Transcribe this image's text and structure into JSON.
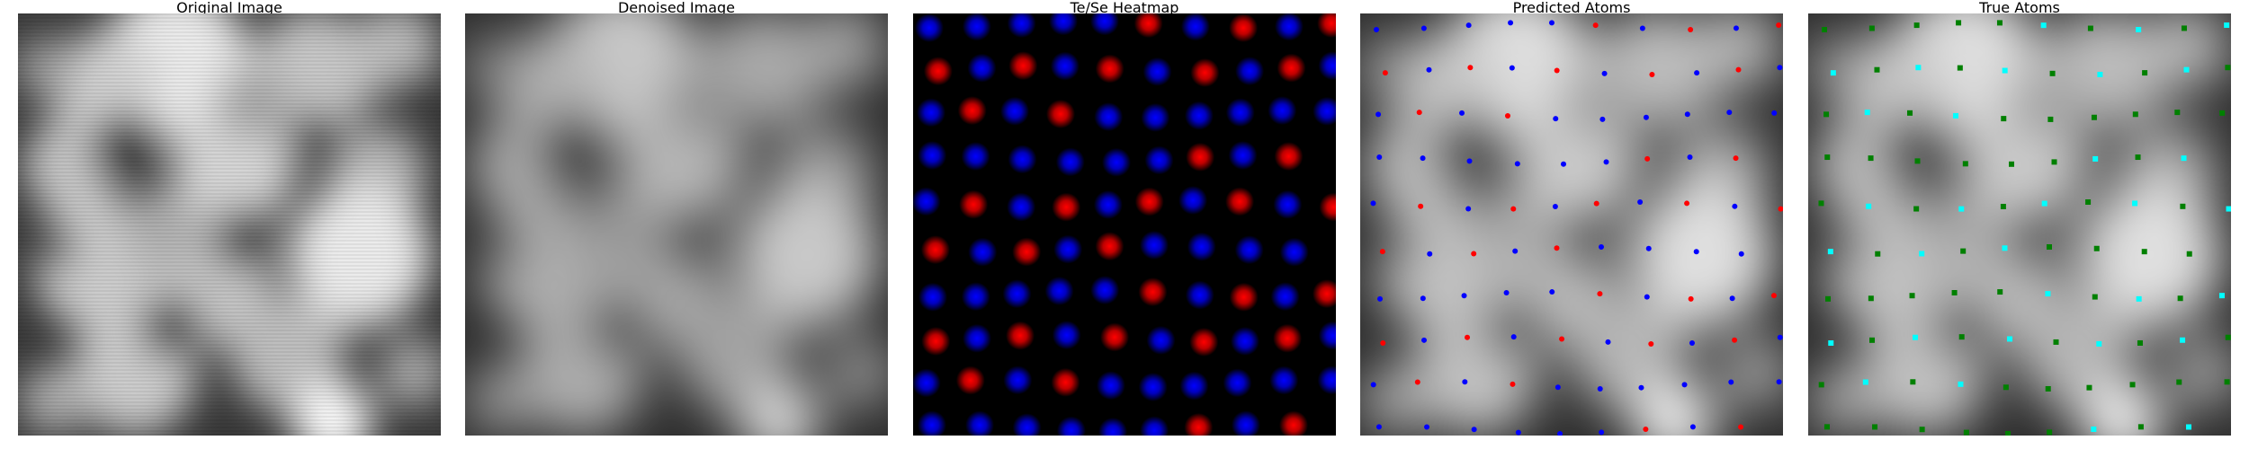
{
  "panels": [
    {
      "title": "Original Image",
      "type": "noisy-grayscale"
    },
    {
      "title": "Denoised Image",
      "type": "smooth-grayscale"
    },
    {
      "title": "Te/Se Heatmap",
      "type": "heatmap"
    },
    {
      "title": "Predicted Atoms",
      "type": "atoms-overlay"
    },
    {
      "title": "True Atoms",
      "type": "atoms-overlay"
    }
  ],
  "colors": {
    "te": "#ff0000",
    "se": "#0000ff",
    "true_a": "#00ffff",
    "true_b": "#008000",
    "heatmap_bg": "#000000"
  }
}
